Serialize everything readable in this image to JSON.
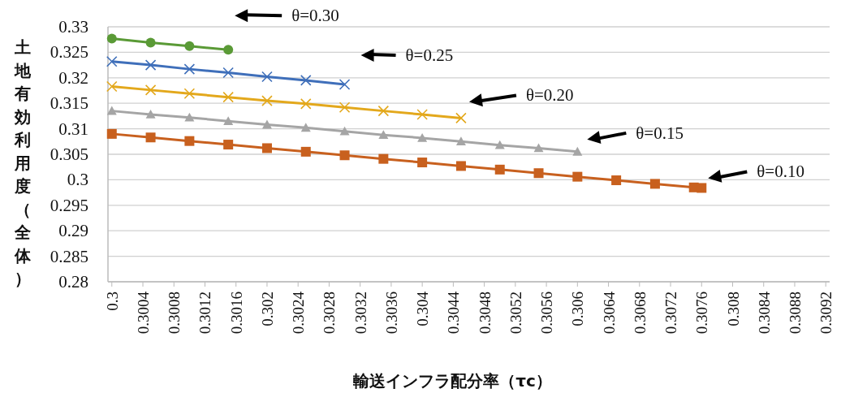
{
  "chart_data": {
    "type": "line",
    "xlabel": "輸送インフラ配分率（τc）",
    "ylabel": "土地有効利用度（全体）",
    "xlim": [
      0.29995,
      0.30925
    ],
    "ylim": [
      0.28,
      0.33
    ],
    "xticks": [
      0.3,
      0.3004,
      0.3008,
      0.3012,
      0.3016,
      0.302,
      0.3024,
      0.3028,
      0.3032,
      0.3036,
      0.304,
      0.3044,
      0.3048,
      0.3052,
      0.3056,
      0.306,
      0.3064,
      0.3068,
      0.3072,
      0.3076,
      0.308,
      0.3084,
      0.3088,
      0.3092
    ],
    "yticks": [
      0.28,
      0.285,
      0.29,
      0.295,
      0.3,
      0.305,
      0.31,
      0.315,
      0.32,
      0.325,
      0.33
    ],
    "grid": "y",
    "series": [
      {
        "name": "θ=0.30",
        "color": "#5a9a36",
        "marker": "circle",
        "x": [
          0.3,
          0.3005,
          0.301,
          0.3015
        ],
        "values": [
          0.3277,
          0.3269,
          0.3262,
          0.3255
        ]
      },
      {
        "name": "θ=0.25",
        "color": "#3f6fba",
        "marker": "cross",
        "x": [
          0.3,
          0.3005,
          0.301,
          0.3015,
          0.302,
          0.3025,
          0.303
        ],
        "values": [
          0.3232,
          0.3225,
          0.3217,
          0.321,
          0.3202,
          0.3195,
          0.3187
        ]
      },
      {
        "name": "θ=0.20",
        "color": "#e3a81c",
        "marker": "cross",
        "x": [
          0.3,
          0.3005,
          0.301,
          0.3015,
          0.302,
          0.3025,
          0.303,
          0.3035,
          0.304,
          0.3045
        ],
        "values": [
          0.3183,
          0.3176,
          0.3169,
          0.3162,
          0.3155,
          0.3149,
          0.3142,
          0.3135,
          0.3128,
          0.3121
        ]
      },
      {
        "name": "θ=0.15",
        "color": "#a5a5a5",
        "marker": "triangle",
        "x": [
          0.3,
          0.3005,
          0.301,
          0.3015,
          0.302,
          0.3025,
          0.303,
          0.3035,
          0.304,
          0.3045,
          0.305,
          0.3055,
          0.306
        ],
        "values": [
          0.3135,
          0.3128,
          0.3122,
          0.3115,
          0.3108,
          0.3102,
          0.3095,
          0.3088,
          0.3082,
          0.3075,
          0.3068,
          0.3062,
          0.3055
        ]
      },
      {
        "name": "θ=0.10",
        "color": "#c8601e",
        "marker": "square",
        "x": [
          0.3,
          0.3005,
          0.301,
          0.3015,
          0.302,
          0.3025,
          0.303,
          0.3035,
          0.304,
          0.3045,
          0.305,
          0.3055,
          0.306,
          0.3065,
          0.307,
          0.3075,
          0.3076
        ],
        "values": [
          0.309,
          0.3083,
          0.3076,
          0.3069,
          0.3062,
          0.3055,
          0.3048,
          0.3041,
          0.3034,
          0.3027,
          0.302,
          0.3013,
          0.3006,
          0.2999,
          0.2992,
          0.2985,
          0.2984
        ]
      }
    ]
  }
}
